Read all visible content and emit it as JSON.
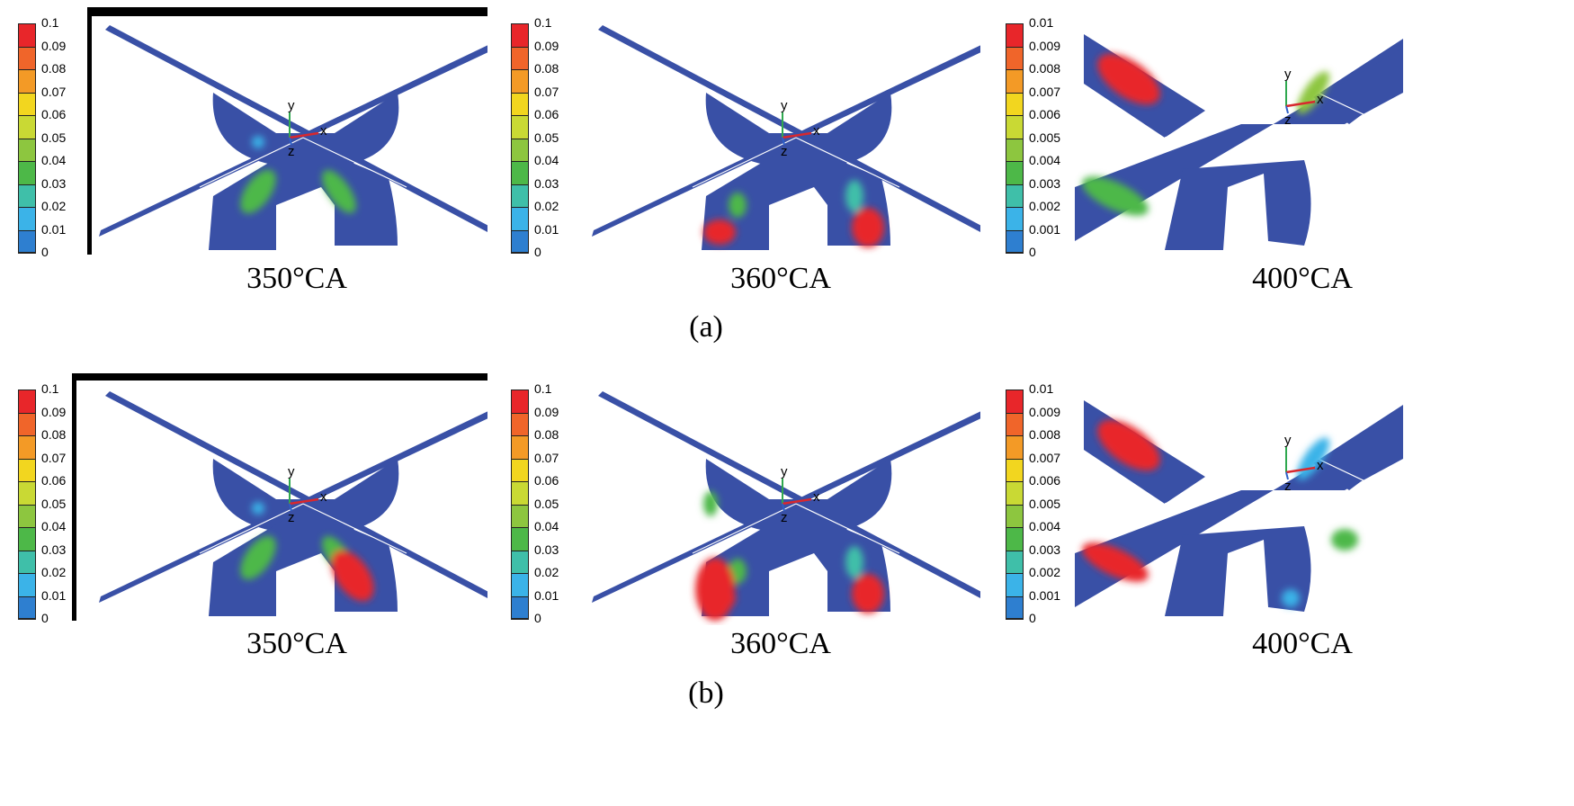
{
  "rows": [
    {
      "label": "(a)",
      "panels": [
        {
          "caption": "350°CA",
          "colorbar": [
            "0.1",
            "0.09",
            "0.08",
            "0.07",
            "0.06",
            "0.05",
            "0.04",
            "0.03",
            "0.02",
            "0.01",
            "0"
          ],
          "frame": "top-right"
        },
        {
          "caption": "360°CA",
          "colorbar": [
            "0.1",
            "0.09",
            "0.08",
            "0.07",
            "0.06",
            "0.05",
            "0.04",
            "0.03",
            "0.02",
            "0.01",
            "0"
          ],
          "frame": "none"
        },
        {
          "caption": "400°CA",
          "colorbar": [
            "0.01",
            "0.009",
            "0.008",
            "0.007",
            "0.006",
            "0.005",
            "0.004",
            "0.003",
            "0.002",
            "0.001",
            "0"
          ],
          "frame": "none"
        }
      ]
    },
    {
      "label": "(b)",
      "panels": [
        {
          "caption": "350°CA",
          "colorbar": [
            "0.1",
            "0.09",
            "0.08",
            "0.07",
            "0.06",
            "0.05",
            "0.04",
            "0.03",
            "0.02",
            "0.01",
            "0"
          ],
          "frame": "top-left"
        },
        {
          "caption": "360°CA",
          "colorbar": [
            "0.1",
            "0.09",
            "0.08",
            "0.07",
            "0.06",
            "0.05",
            "0.04",
            "0.03",
            "0.02",
            "0.01",
            "0"
          ],
          "frame": "none"
        },
        {
          "caption": "400°CA",
          "colorbar": [
            "0.01",
            "0.009",
            "0.008",
            "0.007",
            "0.006",
            "0.005",
            "0.004",
            "0.003",
            "0.002",
            "0.001",
            "0"
          ],
          "frame": "none"
        }
      ]
    }
  ],
  "axes_labels": {
    "y": "y",
    "z": "z",
    "x": "x"
  },
  "colormap": [
    "#e8262a",
    "#f0652a",
    "#f39a26",
    "#f2d61f",
    "#c9d934",
    "#8dc63f",
    "#4db848",
    "#3fbfa9",
    "#3bb3e8",
    "#2e7fd0",
    "#3950a6"
  ]
}
